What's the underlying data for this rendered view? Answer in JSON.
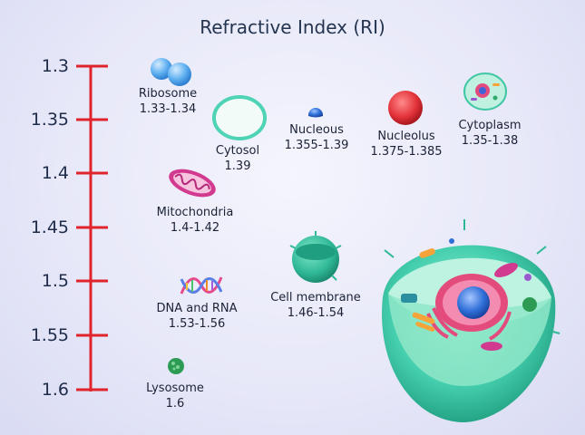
{
  "title": "Refractive Index (RI)",
  "scale": {
    "ticks": [
      "1.3",
      "1.35",
      "1.4",
      "1.45",
      "1.5",
      "1.55",
      "1.6"
    ],
    "color": "#e0242b"
  },
  "organelles": {
    "ribosome": {
      "name": "Ribosome",
      "range": "1.33-1.34",
      "icon": "ribosome-icon"
    },
    "cytosol": {
      "name": "Cytosol",
      "range": "1.39",
      "icon": "cytosol-icon"
    },
    "nucleous": {
      "name": "Nucleous",
      "range": "1.355-1.39",
      "icon": "nucleous-icon"
    },
    "nucleolus": {
      "name": "Nucleolus",
      "range": "1.375-1.385",
      "icon": "nucleolus-icon"
    },
    "cytoplasm": {
      "name": "Cytoplasm",
      "range": "1.35-1.38",
      "icon": "cytoplasm-icon"
    },
    "mitochondria": {
      "name": "Mitochondria",
      "range": "1.4-1.42",
      "icon": "mitochondria-icon"
    },
    "cell_membrane": {
      "name": "Cell membrane",
      "range": "1.46-1.54",
      "icon": "cell-membrane-icon"
    },
    "dna_rna": {
      "name": "DNA and RNA",
      "range": "1.53-1.56",
      "icon": "dna-icon"
    },
    "lysosome": {
      "name": "Lysosome",
      "range": "1.6",
      "icon": "lysosome-icon"
    }
  },
  "colors": {
    "scale_red": "#e0242b",
    "cell_teal": "#3fd0b0",
    "nucleus_blue": "#2f6fd8",
    "nucleolus_red": "#e3333a",
    "mito_magenta": "#d23a8f"
  }
}
